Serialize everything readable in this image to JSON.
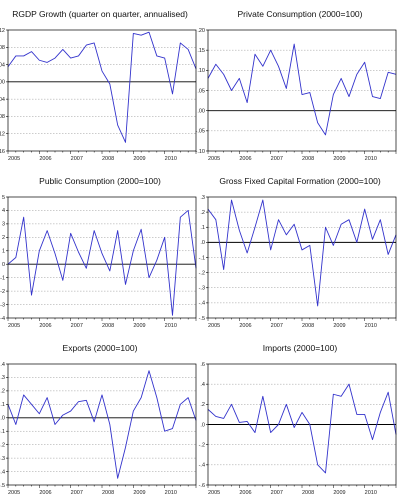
{
  "colors": {
    "series": "#3333cc",
    "zero_line": "#000000",
    "grid": "#9a9a9a",
    "frame": "#000000"
  },
  "chart_data": [
    {
      "type": "line",
      "title": "RGDP Growth (quarter on quarter, annualised)",
      "x_ticks": [
        "2005",
        "2006",
        "2007",
        "2008",
        "2009",
        "2010"
      ],
      "x_start": 2005.0,
      "x_end": 2011.0,
      "ylim": [
        -0.16,
        0.12
      ],
      "y_ticks": [
        {
          "value": 0.12,
          "label": ".12"
        },
        {
          "value": 0.08,
          "label": ".08"
        },
        {
          "value": 0.04,
          "label": ".04"
        },
        {
          "value": 0.0,
          "label": ".00"
        },
        {
          "value": -0.04,
          "label": "-.04"
        },
        {
          "value": -0.08,
          "label": "-.08"
        },
        {
          "value": -0.12,
          "label": "-.12"
        },
        {
          "value": -0.16,
          "label": "-.16"
        }
      ],
      "grid": true,
      "values": [
        0.035,
        0.06,
        0.06,
        0.07,
        0.05,
        0.045,
        0.055,
        0.075,
        0.055,
        0.06,
        0.085,
        0.09,
        0.025,
        -0.005,
        -0.1,
        -0.14,
        0.112,
        0.108,
        0.115,
        0.06,
        0.055,
        -0.028,
        0.09,
        0.075,
        0.03
      ]
    },
    {
      "type": "line",
      "title": "Private Consumption (2000=100)",
      "x_ticks": [
        "2005",
        "2006",
        "2007",
        "2008",
        "2009",
        "2010"
      ],
      "x_start": 2005.0,
      "x_end": 2011.0,
      "ylim": [
        -0.1,
        0.2
      ],
      "y_ticks": [
        {
          "value": 0.2,
          "label": ".20"
        },
        {
          "value": 0.15,
          "label": ".15"
        },
        {
          "value": 0.1,
          "label": ".10"
        },
        {
          "value": 0.05,
          "label": ".05"
        },
        {
          "value": 0.0,
          "label": ".00"
        },
        {
          "value": -0.05,
          "label": "-.05"
        },
        {
          "value": -0.1,
          "label": "-.10"
        }
      ],
      "grid": true,
      "values": [
        0.08,
        0.115,
        0.09,
        0.05,
        0.08,
        0.02,
        0.14,
        0.11,
        0.15,
        0.11,
        0.055,
        0.165,
        0.04,
        0.045,
        -0.03,
        -0.06,
        0.04,
        0.08,
        0.035,
        0.09,
        0.12,
        0.035,
        0.03,
        0.095,
        0.09
      ]
    },
    {
      "type": "line",
      "title": "Public Consumption (2000=100)",
      "x_ticks": [
        "2005",
        "2006",
        "2007",
        "2008",
        "2009",
        "2010"
      ],
      "x_start": 2005.0,
      "x_end": 2011.0,
      "ylim": [
        -4,
        5
      ],
      "y_ticks": [
        {
          "value": 5,
          "label": "5"
        },
        {
          "value": 4,
          "label": "4"
        },
        {
          "value": 3,
          "label": "3"
        },
        {
          "value": 2,
          "label": "2"
        },
        {
          "value": 1,
          "label": "1"
        },
        {
          "value": 0,
          "label": "0"
        },
        {
          "value": -1,
          "label": "-1"
        },
        {
          "value": -2,
          "label": "-2"
        },
        {
          "value": -3,
          "label": "-3"
        },
        {
          "value": -4,
          "label": "-4"
        }
      ],
      "grid": true,
      "values": [
        0,
        0.5,
        3.5,
        -2.3,
        1.0,
        2.5,
        0.8,
        -1.2,
        2.3,
        0.9,
        -0.3,
        2.5,
        0.8,
        -0.5,
        2.5,
        -1.5,
        1.0,
        2.6,
        -1.0,
        0.3,
        2.0,
        -3.8,
        3.5,
        4.0,
        -0.3
      ]
    },
    {
      "type": "line",
      "title": "Gross Fixed Capital Formation (2000=100)",
      "x_ticks": [
        "2005",
        "2006",
        "2007",
        "2008",
        "2009",
        "2010"
      ],
      "x_start": 2005.0,
      "x_end": 2011.0,
      "ylim": [
        -0.5,
        0.3
      ],
      "y_ticks": [
        {
          "value": 0.3,
          "label": ".3"
        },
        {
          "value": 0.2,
          "label": ".2"
        },
        {
          "value": 0.1,
          "label": ".1"
        },
        {
          "value": 0.0,
          "label": ".0"
        },
        {
          "value": -0.1,
          "label": "-.1"
        },
        {
          "value": -0.2,
          "label": "-.2"
        },
        {
          "value": -0.3,
          "label": "-.3"
        },
        {
          "value": -0.4,
          "label": "-.4"
        },
        {
          "value": -0.5,
          "label": "-.5"
        }
      ],
      "grid": true,
      "values": [
        0.22,
        0.15,
        -0.18,
        0.28,
        0.08,
        -0.07,
        0.1,
        0.28,
        -0.05,
        0.15,
        0.05,
        0.12,
        -0.05,
        -0.02,
        -0.42,
        0.1,
        -0.02,
        0.12,
        0.15,
        0.0,
        0.22,
        0.02,
        0.15,
        -0.08,
        0.05
      ]
    },
    {
      "type": "line",
      "title": "Exports (2000=100)",
      "x_ticks": [
        "2005",
        "2006",
        "2007",
        "2008",
        "2009",
        "2010"
      ],
      "x_start": 2005.0,
      "x_end": 2011.0,
      "ylim": [
        -0.5,
        0.4
      ],
      "y_ticks": [
        {
          "value": 0.4,
          "label": ".4"
        },
        {
          "value": 0.3,
          "label": ".3"
        },
        {
          "value": 0.2,
          "label": ".2"
        },
        {
          "value": 0.1,
          "label": ".1"
        },
        {
          "value": 0.0,
          "label": ".0"
        },
        {
          "value": -0.1,
          "label": "-.1"
        },
        {
          "value": -0.2,
          "label": "-.2"
        },
        {
          "value": -0.3,
          "label": "-.3"
        },
        {
          "value": -0.4,
          "label": "-.4"
        },
        {
          "value": -0.5,
          "label": "-.5"
        }
      ],
      "grid": true,
      "values": [
        0.1,
        -0.05,
        0.17,
        0.1,
        0.03,
        0.15,
        -0.05,
        0.02,
        0.05,
        0.12,
        0.13,
        -0.03,
        0.17,
        -0.05,
        -0.45,
        -0.22,
        0.05,
        0.15,
        0.35,
        0.15,
        -0.1,
        -0.08,
        0.1,
        0.15,
        -0.02
      ]
    },
    {
      "type": "line",
      "title": "Imports (2000=100)",
      "x_ticks": [
        "2005",
        "2006",
        "2007",
        "2008",
        "2009",
        "2010"
      ],
      "x_start": 2005.0,
      "x_end": 2011.0,
      "ylim": [
        -0.6,
        0.6
      ],
      "y_ticks": [
        {
          "value": 0.6,
          "label": ".6"
        },
        {
          "value": 0.4,
          "label": ".4"
        },
        {
          "value": 0.2,
          "label": ".2"
        },
        {
          "value": 0.0,
          "label": ".0"
        },
        {
          "value": -0.2,
          "label": "-.2"
        },
        {
          "value": -0.4,
          "label": "-.4"
        },
        {
          "value": -0.6,
          "label": "-.6"
        }
      ],
      "grid": true,
      "values": [
        0.15,
        0.08,
        0.06,
        0.2,
        0.02,
        0.03,
        -0.08,
        0.28,
        -0.08,
        0.0,
        0.2,
        -0.03,
        0.12,
        0.0,
        -0.4,
        -0.48,
        0.3,
        0.28,
        0.4,
        0.1,
        0.1,
        -0.15,
        0.12,
        0.32,
        -0.1
      ]
    }
  ]
}
